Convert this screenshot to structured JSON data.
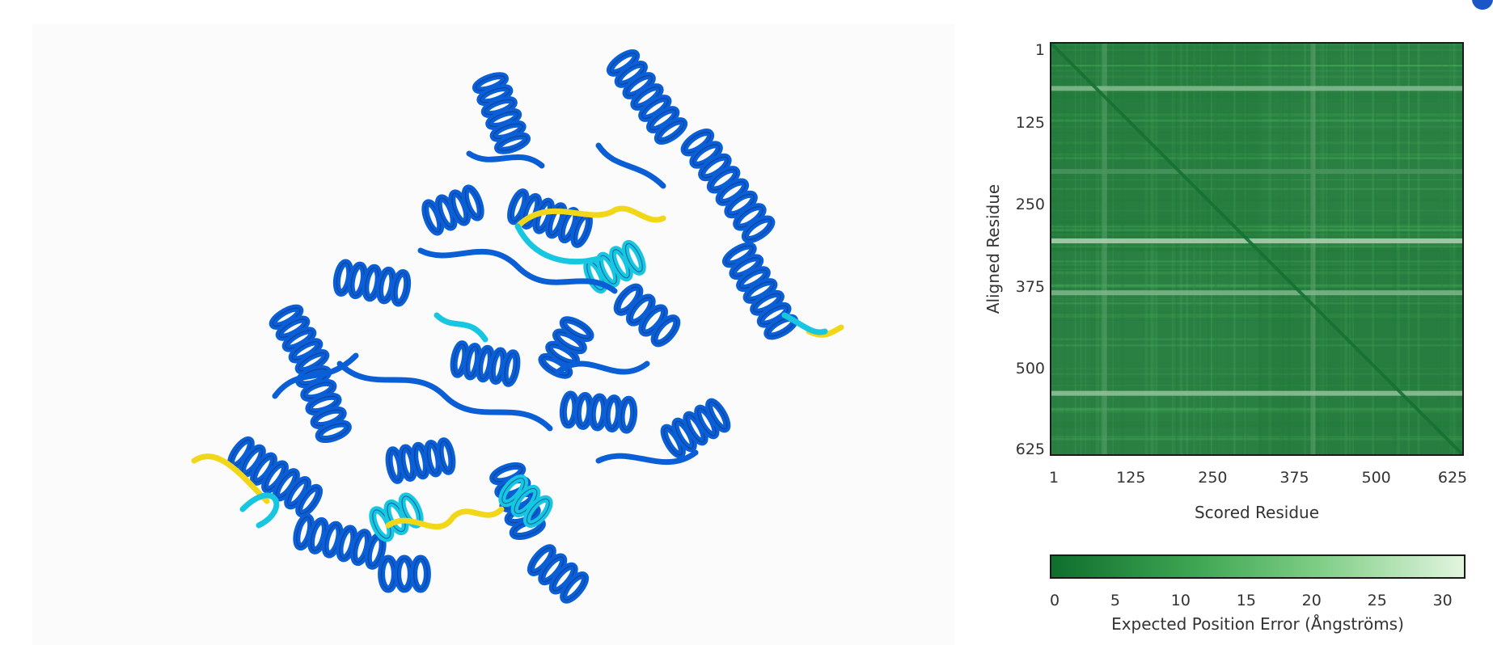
{
  "structure_viewer": {
    "colors": {
      "very_high": "#0b5fd6",
      "confident": "#17c7e2",
      "low": "#f2d718",
      "background": "#fbfbfb"
    }
  },
  "pae_plot": {
    "heatmap_colors": {
      "base": "#2f9c44",
      "dark": "#136b2c",
      "light": "#d8f1d5"
    },
    "colorbar": {
      "gradient_start": "#0f6e2d",
      "gradient_end": "#e2f5df",
      "label": "Expected Position Error (Ångströms)",
      "ticks": [
        "0",
        "5",
        "10",
        "15",
        "20",
        "25",
        "30"
      ],
      "range": [
        0,
        31.75
      ]
    }
  },
  "chart_data": {
    "type": "heatmap",
    "title": "",
    "xlabel": "Scored Residue",
    "ylabel": "Aligned Residue",
    "x_ticks": [
      1,
      125,
      250,
      375,
      500,
      625
    ],
    "y_ticks": [
      1,
      125,
      250,
      375,
      500,
      625
    ],
    "x_tick_labels": [
      "1",
      "125",
      "250",
      "375",
      "500",
      "625"
    ],
    "y_tick_labels": [
      "1",
      "125",
      "250",
      "375",
      "500",
      "625"
    ],
    "xlim": [
      1,
      634
    ],
    "ylim": [
      1,
      634
    ],
    "z_label": "Expected Position Error (Ångströms)",
    "z_range": [
      0,
      31.75
    ],
    "typical_error": 4,
    "diagonal_error": 1,
    "high_error_rows": [
      {
        "residue": 70,
        "error": 18
      },
      {
        "residue": 198,
        "error": 9
      },
      {
        "residue": 305,
        "error": 24
      },
      {
        "residue": 385,
        "error": 17
      },
      {
        "residue": 540,
        "error": 20
      }
    ],
    "high_error_columns": [
      {
        "residue": 83,
        "error": 12
      },
      {
        "residue": 404,
        "error": 12
      }
    ],
    "domain_boundary": 320
  }
}
